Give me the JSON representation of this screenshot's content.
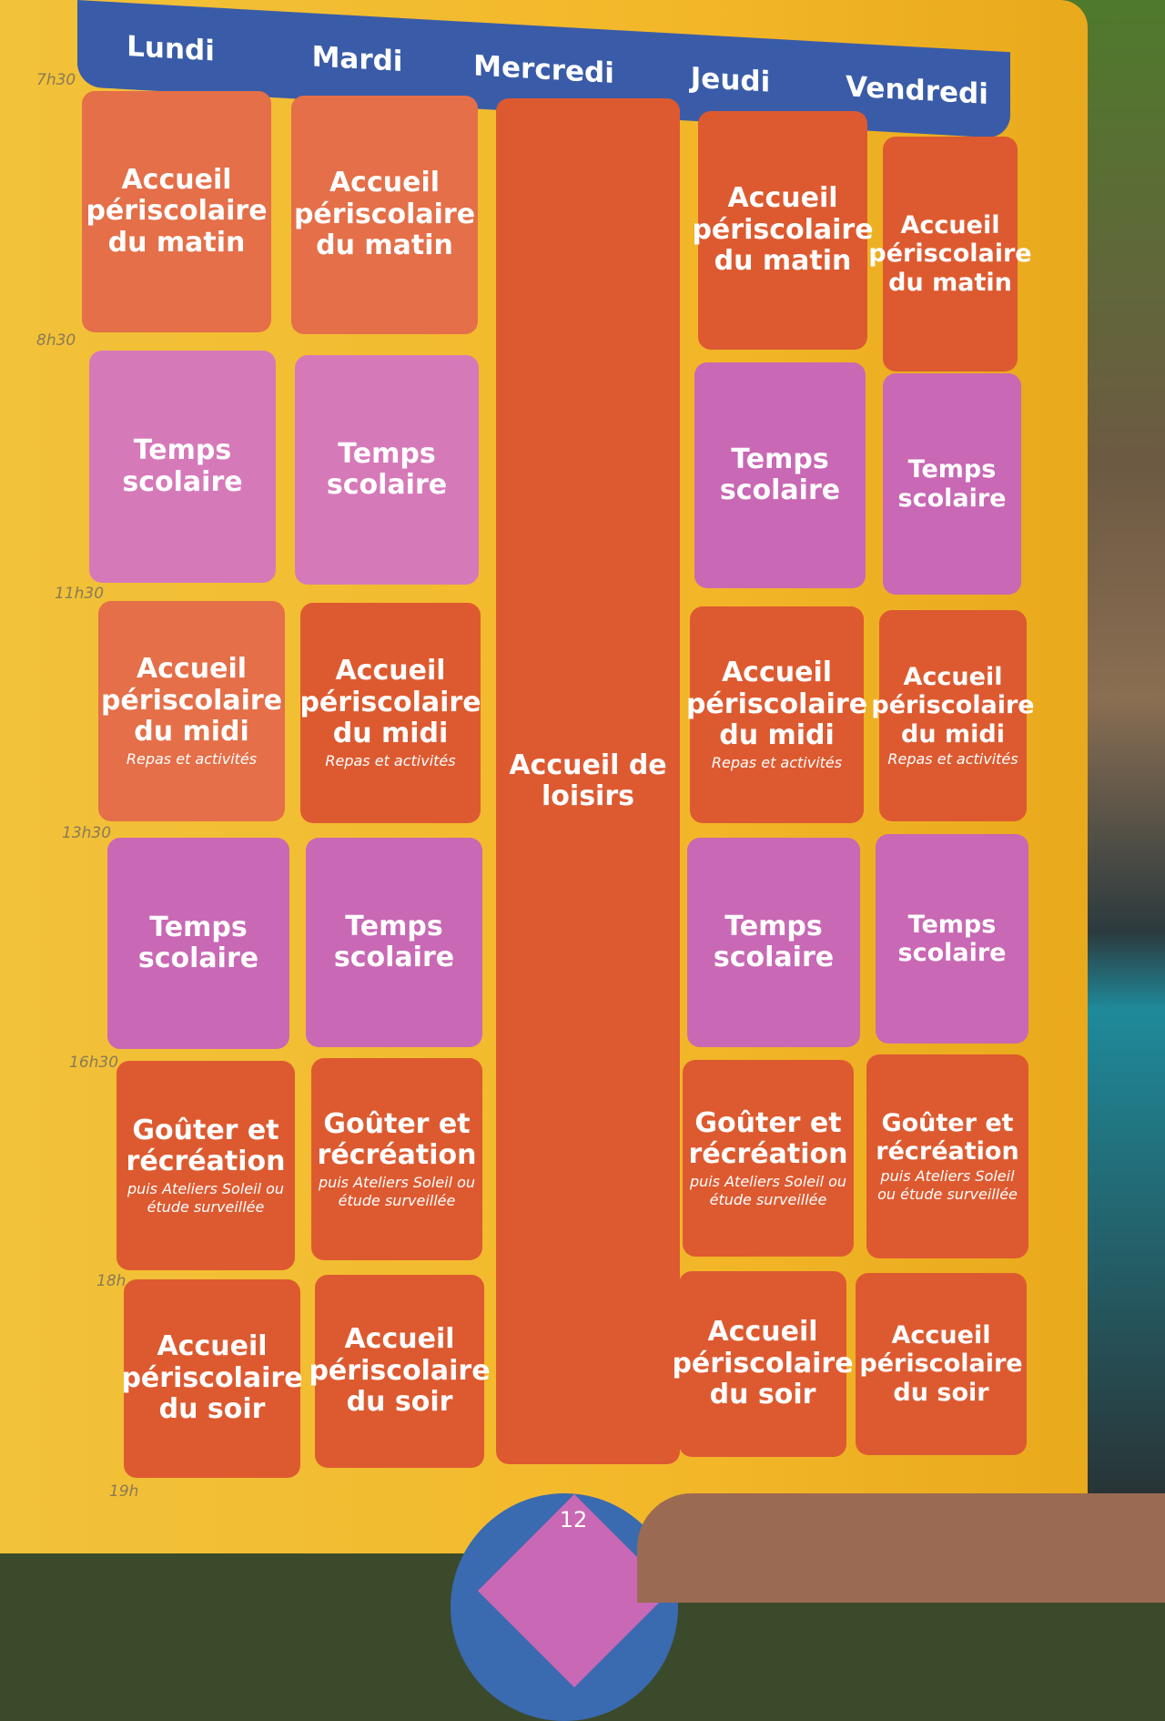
{
  "days": [
    "Lundi",
    "Mardi",
    "Mercredi",
    "Jeudi",
    "Vendredi"
  ],
  "times": [
    "7h30",
    "8h30",
    "11h30",
    "13h30",
    "16h30",
    "18h",
    "19h"
  ],
  "blocks": {
    "matin": "Accueil périscolaire du matin",
    "scolaire": "Temps scolaire",
    "midi": "Accueil périscolaire du midi",
    "midi_sub": "Repas et activités",
    "gouter": "Goûter et récréation",
    "gouter_sub": "puis Ateliers Soleil ou étude surveillée",
    "soir": "Accueil périscolaire du soir",
    "loisirs": "Accueil de loisirs"
  },
  "page_number": "12",
  "colors": {
    "background": "#f2c23a",
    "header": "#3a5ca8",
    "periscolaire": "#dd5a30",
    "scolaire": "#c968b4"
  }
}
